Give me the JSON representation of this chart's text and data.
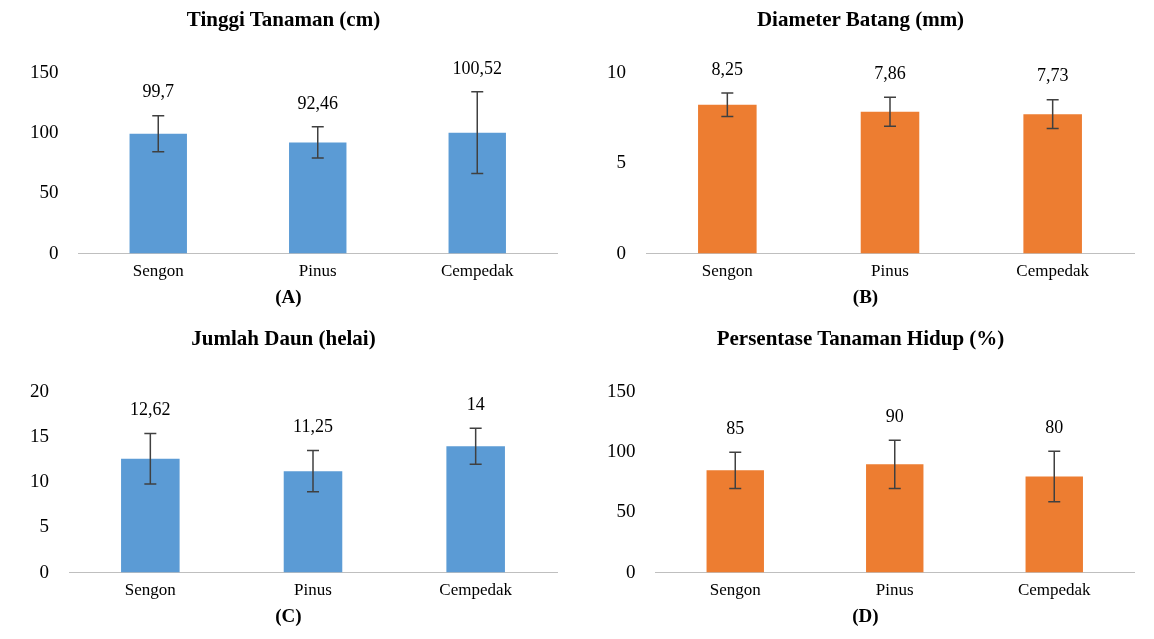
{
  "chart_data": [
    {
      "type": "bar",
      "title": "Tinggi Tanaman (cm)",
      "categories": [
        "Sengon",
        "Pinus",
        "Cempedak"
      ],
      "values": [
        99.7,
        92.46,
        100.52
      ],
      "color": "#5b9bd5",
      "errors": [
        15,
        13,
        34
      ],
      "value_labels": [
        "99,7",
        "92,46",
        "100,52"
      ],
      "ylim": [
        0,
        150
      ],
      "yticks": [
        0,
        50,
        100,
        150
      ],
      "grid": false,
      "annotations": [
        "(A)"
      ]
    },
    {
      "type": "bar",
      "title": "Diameter Batang (mm)",
      "categories": [
        "Sengon",
        "Pinus",
        "Cempedak"
      ],
      "values": [
        8.25,
        7.86,
        7.73
      ],
      "color": "#ed7d31",
      "errors": [
        0.65,
        0.8,
        0.8
      ],
      "value_labels": [
        "8,25",
        "7,86",
        "7,73"
      ],
      "ylim": [
        0,
        10
      ],
      "yticks": [
        0,
        5,
        10
      ],
      "grid": false,
      "annotations": [
        "(B)"
      ]
    },
    {
      "type": "bar",
      "title": "Jumlah Daun (helai)",
      "categories": [
        "Sengon",
        "Pinus",
        "Cempedak"
      ],
      "values": [
        12.62,
        11.25,
        14
      ],
      "color": "#5b9bd5",
      "errors": [
        2.8,
        2.3,
        2
      ],
      "value_labels": [
        "12,62",
        "11,25",
        "14"
      ],
      "ylim": [
        0,
        20
      ],
      "yticks": [
        0,
        5,
        10,
        15,
        20
      ],
      "grid": false,
      "annotations": [
        "(C)"
      ]
    },
    {
      "type": "bar",
      "title": "Persentase Tanaman Hidup (%)",
      "categories": [
        "Sengon",
        "Pinus",
        "Cempedak"
      ],
      "values": [
        85,
        90,
        80
      ],
      "color": "#ed7d31",
      "errors": [
        15,
        20,
        21
      ],
      "value_labels": [
        "85",
        "90",
        "80"
      ],
      "ylim": [
        0,
        150
      ],
      "yticks": [
        0,
        50,
        100,
        150
      ],
      "grid": false,
      "annotations": [
        "(D)"
      ]
    }
  ]
}
